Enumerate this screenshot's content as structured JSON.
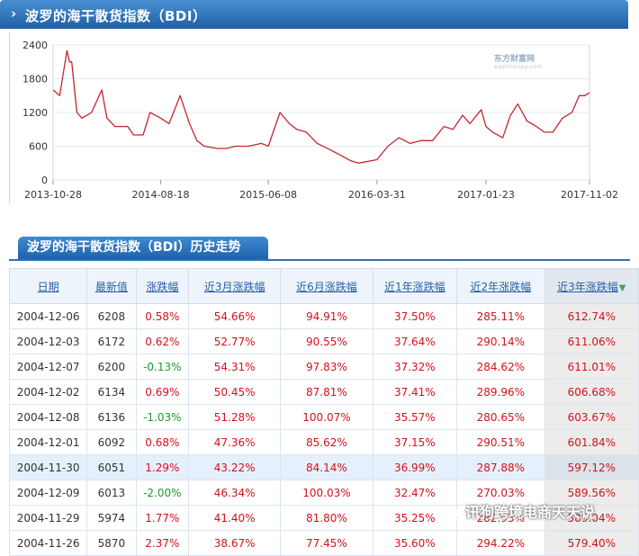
{
  "header": {
    "title": "波罗的海干散货指数（BDI）"
  },
  "chart_data": {
    "type": "line",
    "ylim": [
      0,
      2400
    ],
    "y_ticks": [
      "0",
      "600",
      "1200",
      "1800",
      "2400"
    ],
    "x_tick_labels": [
      "2013-10-28",
      "2014-08-18",
      "2015-06-08",
      "2016-03-31",
      "2017-01-23",
      "2017-11-02"
    ],
    "series": [
      {
        "color": "#c8242e",
        "x": [
          "2013-10-28",
          "2013-11-15",
          "2013-12-05",
          "2013-12-12",
          "2013-12-18",
          "2014-01-01",
          "2014-01-15",
          "2014-02-10",
          "2014-03-10",
          "2014-03-24",
          "2014-04-15",
          "2014-05-20",
          "2014-06-05",
          "2014-07-01",
          "2014-07-20",
          "2014-08-18",
          "2014-09-10",
          "2014-10-10",
          "2014-11-05",
          "2014-11-25",
          "2014-12-15",
          "2015-01-20",
          "2015-02-15",
          "2015-03-10",
          "2015-04-15",
          "2015-05-20",
          "2015-06-08",
          "2015-07-10",
          "2015-08-05",
          "2015-08-25",
          "2015-09-20",
          "2015-10-20",
          "2015-11-20",
          "2015-12-20",
          "2016-01-20",
          "2016-02-10",
          "2016-03-31",
          "2016-04-30",
          "2016-05-30",
          "2016-06-30",
          "2016-07-30",
          "2016-08-30",
          "2016-09-30",
          "2016-10-25",
          "2016-11-20",
          "2016-12-10",
          "2017-01-10",
          "2017-01-23",
          "2017-02-10",
          "2017-03-10",
          "2017-03-31",
          "2017-04-20",
          "2017-05-15",
          "2017-06-10",
          "2017-07-01",
          "2017-07-25",
          "2017-08-20",
          "2017-09-15",
          "2017-10-05",
          "2017-10-20",
          "2017-11-02"
        ],
        "values": [
          1600,
          1500,
          2300,
          2100,
          2100,
          1200,
          1100,
          1200,
          1600,
          1100,
          950,
          950,
          800,
          800,
          1200,
          1100,
          1000,
          1500,
          1000,
          700,
          600,
          560,
          560,
          600,
          600,
          650,
          600,
          1200,
          1000,
          900,
          850,
          650,
          550,
          450,
          340,
          300,
          360,
          600,
          750,
          650,
          700,
          700,
          950,
          900,
          1150,
          1000,
          1250,
          950,
          850,
          750,
          1150,
          1350,
          1050,
          950,
          850,
          850,
          1100,
          1200,
          1500,
          1500,
          1550
        ]
      }
    ]
  },
  "watermark": {
    "brand": "东方财富网",
    "domain": "eastmoney.com"
  },
  "section": {
    "title": "波罗的海干散货指数（BDI）历史走势"
  },
  "table": {
    "columns": [
      "日期",
      "最新值",
      "涨跌幅",
      "近3月涨跌幅",
      "近6月涨跌幅",
      "近1年涨跌幅",
      "近2年涨跌幅",
      "近3年涨跌幅"
    ],
    "sort_icon": "sort-arrow-down-icon",
    "rows": [
      {
        "date": "2004-12-06",
        "value": "6208",
        "chg": "0.58%",
        "m3": "54.66%",
        "m6": "94.91%",
        "y1": "37.50%",
        "y2": "285.11%",
        "y3": "612.74%"
      },
      {
        "date": "2004-12-03",
        "value": "6172",
        "chg": "0.62%",
        "m3": "52.77%",
        "m6": "90.55%",
        "y1": "37.64%",
        "y2": "290.14%",
        "y3": "611.06%"
      },
      {
        "date": "2004-12-07",
        "value": "6200",
        "chg": "-0.13%",
        "m3": "54.31%",
        "m6": "97.83%",
        "y1": "37.32%",
        "y2": "284.62%",
        "y3": "611.01%"
      },
      {
        "date": "2004-12-02",
        "value": "6134",
        "chg": "0.69%",
        "m3": "50.45%",
        "m6": "87.81%",
        "y1": "37.41%",
        "y2": "289.96%",
        "y3": "606.68%"
      },
      {
        "date": "2004-12-08",
        "value": "6136",
        "chg": "-1.03%",
        "m3": "51.28%",
        "m6": "100.07%",
        "y1": "35.57%",
        "y2": "280.65%",
        "y3": "603.67%"
      },
      {
        "date": "2004-12-01",
        "value": "6092",
        "chg": "0.68%",
        "m3": "47.36%",
        "m6": "85.62%",
        "y1": "37.15%",
        "y2": "290.51%",
        "y3": "601.84%"
      },
      {
        "date": "2004-11-30",
        "value": "6051",
        "chg": "1.29%",
        "m3": "43.22%",
        "m6": "84.14%",
        "y1": "36.99%",
        "y2": "287.88%",
        "y3": "597.12%"
      },
      {
        "date": "2004-12-09",
        "value": "6013",
        "chg": "-2.00%",
        "m3": "46.34%",
        "m6": "100.03%",
        "y1": "32.47%",
        "y2": "270.03%",
        "y3": "589.56%"
      },
      {
        "date": "2004-11-29",
        "value": "5974",
        "chg": "1.77%",
        "m3": "41.40%",
        "m6": "81.80%",
        "y1": "35.25%",
        "y2": "282.95%",
        "y3": "589.04%"
      },
      {
        "date": "2004-11-26",
        "value": "5870",
        "chg": "2.37%",
        "m3": "38.67%",
        "m6": "77.45%",
        "y1": "35.60%",
        "y2": "294.22%",
        "y3": "579.40%"
      }
    ]
  },
  "wechat_watermark": {
    "icon": "wechat-icon",
    "text": "讯狗跨境电商天天说"
  }
}
